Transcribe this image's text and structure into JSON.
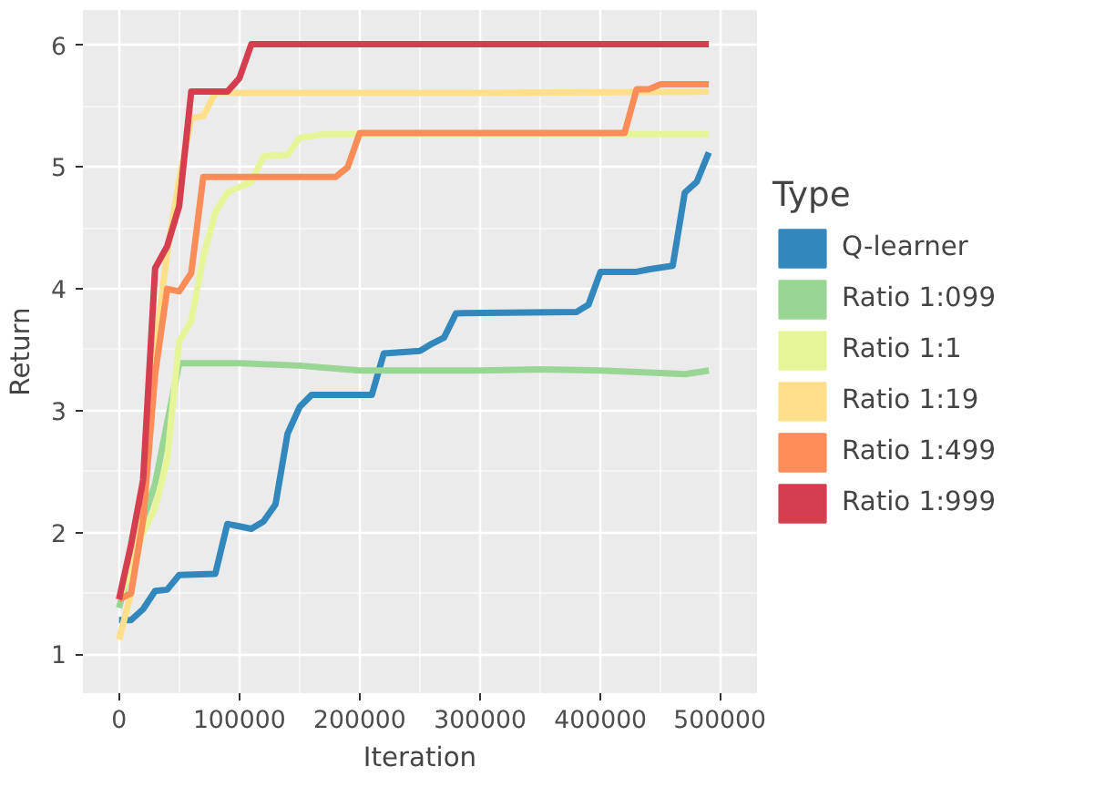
{
  "chart_data": {
    "type": "line",
    "xlabel": "Iteration",
    "ylabel": "Return",
    "legend_title": "Type",
    "xlim": [
      -30000,
      530000
    ],
    "ylim": [
      0.68,
      6.29
    ],
    "xticks": [
      0,
      100000,
      200000,
      300000,
      400000,
      500000
    ],
    "yticks": [
      1,
      2,
      3,
      4,
      5,
      6
    ],
    "grid": true,
    "legend": "right",
    "line_style": "solid",
    "series": [
      {
        "name": "Q-learner",
        "color": "#3288bd",
        "x": [
          0,
          10000,
          20000,
          30000,
          40000,
          50000,
          80000,
          90000,
          110000,
          120000,
          130000,
          140000,
          150000,
          160000,
          210000,
          220000,
          250000,
          260000,
          270000,
          280000,
          380000,
          390000,
          400000,
          430000,
          440000,
          460000,
          470000,
          480000,
          490000
        ],
        "values": [
          1.28,
          1.28,
          1.37,
          1.52,
          1.53,
          1.65,
          1.66,
          2.07,
          2.03,
          2.09,
          2.23,
          2.81,
          3.03,
          3.13,
          3.13,
          3.47,
          3.49,
          3.55,
          3.6,
          3.8,
          3.81,
          3.87,
          4.14,
          4.14,
          4.16,
          4.19,
          4.79,
          4.88,
          5.12
        ]
      },
      {
        "name": "Ratio 1:099",
        "color": "#99d594",
        "x": [
          0,
          10000,
          20000,
          30000,
          40000,
          50000,
          100000,
          150000,
          200000,
          250000,
          300000,
          350000,
          400000,
          450000,
          470000,
          490000
        ],
        "values": [
          1.38,
          1.75,
          2.1,
          2.4,
          2.9,
          3.39,
          3.39,
          3.37,
          3.33,
          3.33,
          3.33,
          3.34,
          3.33,
          3.31,
          3.3,
          3.33
        ]
      },
      {
        "name": "Ratio 1:1",
        "color": "#e6f598",
        "x": [
          0,
          10000,
          20000,
          30000,
          40000,
          50000,
          60000,
          70000,
          80000,
          90000,
          110000,
          120000,
          140000,
          150000,
          170000,
          490000
        ],
        "values": [
          1.45,
          1.7,
          2.0,
          2.2,
          2.6,
          3.57,
          3.74,
          4.26,
          4.63,
          4.79,
          4.88,
          5.09,
          5.1,
          5.24,
          5.27,
          5.27
        ]
      },
      {
        "name": "Ratio 1:19",
        "color": "#fee08b",
        "x": [
          0,
          10000,
          20000,
          30000,
          40000,
          50000,
          60000,
          70000,
          80000,
          300000,
          490000
        ],
        "values": [
          1.12,
          1.5,
          2.3,
          3.5,
          4.3,
          4.9,
          5.4,
          5.42,
          5.61,
          5.61,
          5.62
        ]
      },
      {
        "name": "Ratio 1:499",
        "color": "#fc8d59",
        "x": [
          0,
          10000,
          20000,
          30000,
          40000,
          50000,
          60000,
          70000,
          180000,
          190000,
          200000,
          420000,
          430000,
          440000,
          450000,
          490000
        ],
        "values": [
          1.45,
          1.5,
          2.1,
          3.3,
          4.0,
          3.98,
          4.13,
          4.92,
          4.92,
          5.0,
          5.28,
          5.28,
          5.64,
          5.64,
          5.68,
          5.68
        ]
      },
      {
        "name": "Ratio 1:999",
        "color": "#d53e4f",
        "x": [
          0,
          10000,
          20000,
          30000,
          40000,
          50000,
          60000,
          90000,
          100000,
          110000,
          490000
        ],
        "values": [
          1.45,
          1.9,
          2.43,
          4.17,
          4.35,
          4.68,
          5.62,
          5.62,
          5.73,
          6.01,
          6.01
        ]
      }
    ]
  }
}
